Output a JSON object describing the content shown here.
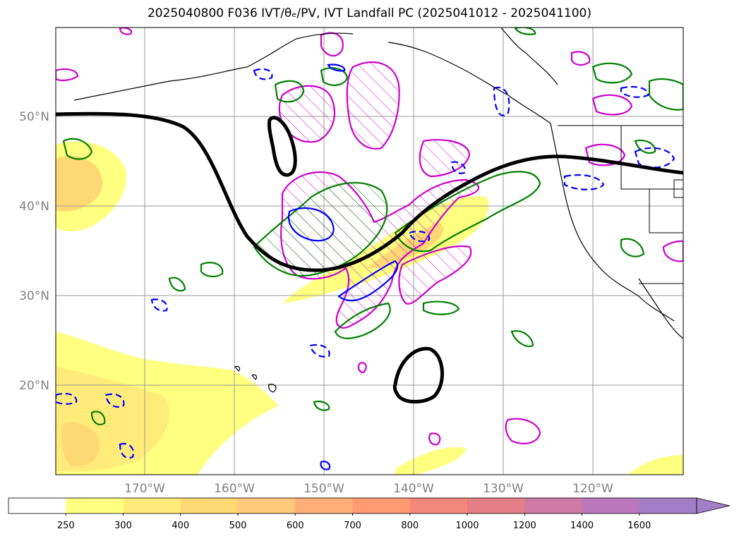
{
  "title": "2025040800 F036 IVT/θₑ/PV, IVT Landfall PC (2025041012 - 2025041100)",
  "lat_labels": [
    "50°N",
    "40°N",
    "30°N",
    "20°N"
  ],
  "lon_labels": [
    "170°W",
    "160°W",
    "150°W",
    "140°W",
    "130°W",
    "120°W"
  ],
  "colorbar": {
    "levels": [
      "250",
      "300",
      "400",
      "500",
      "600",
      "700",
      "800",
      "1000",
      "1200",
      "1400",
      "1600"
    ],
    "colors": [
      "#ffffff",
      "#ffff80",
      "#ffeb7a",
      "#ffd873",
      "#ffc87a",
      "#ffae78",
      "#ff9a73",
      "#f5887a",
      "#e57f87",
      "#cf7aa3",
      "#bb78bd",
      "#a47dc8"
    ],
    "extend": "max"
  },
  "contour_colors": {
    "ivt_landfall": "#000000",
    "pv": "#cc00cc",
    "theta_e_pos": "#008000",
    "theta_e_neg": "#0000ff"
  }
}
